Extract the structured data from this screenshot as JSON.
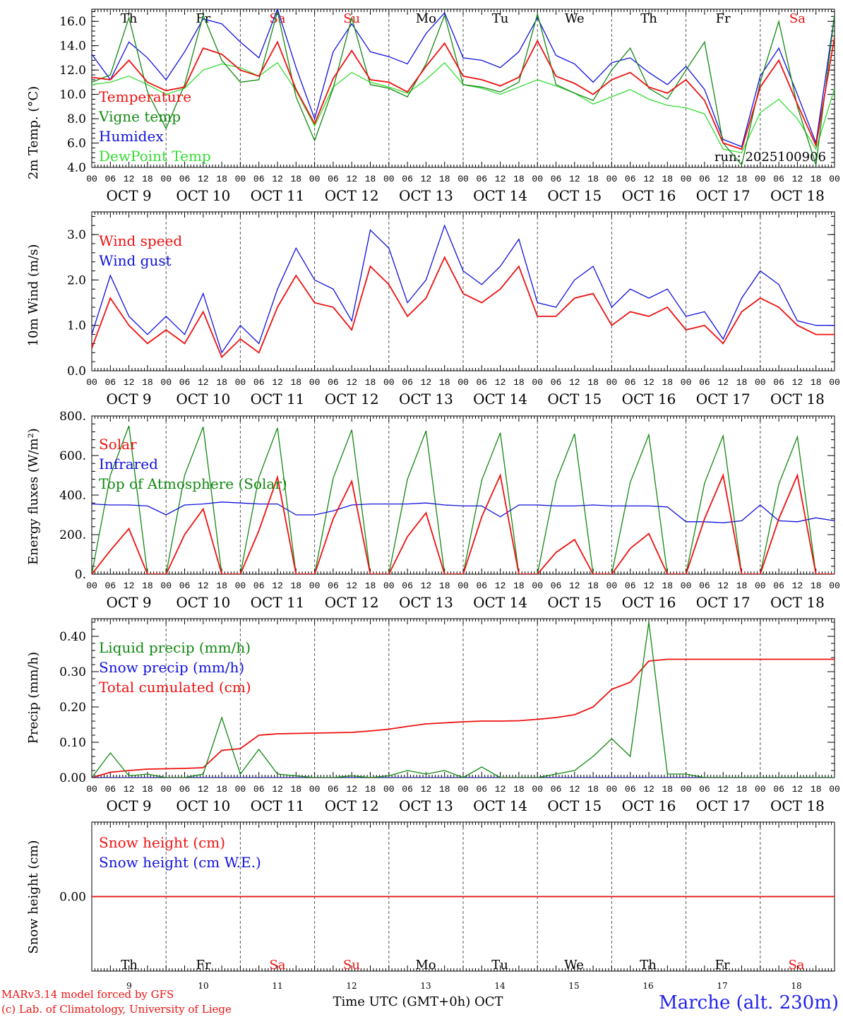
{
  "colors": {
    "red": "#ee1111",
    "green": "#118811",
    "blue": "#1111dd",
    "lightgreen": "#33dd33",
    "axis": "#000000"
  },
  "days": {
    "weekdays": [
      "Th",
      "Fr",
      "Sa",
      "Su",
      "Mo",
      "Tu",
      "We",
      "Th",
      "Fr",
      "Sa"
    ],
    "weekend": [
      false,
      false,
      true,
      true,
      false,
      false,
      false,
      false,
      false,
      true
    ],
    "dates": [
      "OCT  9",
      "OCT 10",
      "OCT 11",
      "OCT 12",
      "OCT 13",
      "OCT 14",
      "OCT 15",
      "OCT 16",
      "OCT 17",
      "OCT 18"
    ],
    "daynums": [
      "9",
      "10",
      "11",
      "12",
      "13",
      "14",
      "15",
      "16",
      "17",
      "18"
    ],
    "hour_ticks": [
      "00",
      "06",
      "12",
      "18"
    ],
    "end_tick": "00"
  },
  "run_label": "run: 2025100906",
  "footer": {
    "model": "MARv3.14 model forced by GFS",
    "copyright": "(c) Lab. of Climatology, University of Liege",
    "xlabel": "Time UTC (GMT+0h) OCT",
    "station": "Marche (alt. 230m)"
  },
  "chart_data": [
    {
      "type": "line",
      "ylabel": "2m Temp. (°C)",
      "ylim": [
        4,
        17
      ],
      "yticks": [
        "4.0",
        "6.0",
        "8.0",
        "10.0",
        "12.0",
        "14.0",
        "16.0"
      ],
      "ytick_values": [
        4,
        6,
        8,
        10,
        12,
        14,
        16
      ],
      "x_hours": [
        0,
        6,
        12,
        18,
        24,
        30,
        36,
        42,
        48,
        54,
        60,
        66,
        72,
        78,
        84,
        90,
        96,
        102,
        108,
        114,
        120,
        126,
        132,
        138,
        144,
        150,
        156,
        162,
        168,
        174,
        180,
        186,
        192,
        198,
        204,
        210,
        216,
        222,
        228,
        234,
        240
      ],
      "series": [
        {
          "name": "Temperature",
          "color": "red",
          "values": [
            11.4,
            11.2,
            12.8,
            11.0,
            10.3,
            10.6,
            13.8,
            13.3,
            12.0,
            11.5,
            14.3,
            10.4,
            7.6,
            11.3,
            13.6,
            11.2,
            11.0,
            10.2,
            12.3,
            14.2,
            11.5,
            11.2,
            10.7,
            11.4,
            14.4,
            11.5,
            10.9,
            10.0,
            11.2,
            11.8,
            10.6,
            10.1,
            11.2,
            9.5,
            6.0,
            5.5,
            10.6,
            12.8,
            9.2,
            5.8,
            14.7
          ]
        },
        {
          "name": "Vigne temp",
          "color": "green",
          "values": [
            11.0,
            11.6,
            16.3,
            10.2,
            7.2,
            10.8,
            16.5,
            12.8,
            11.0,
            11.2,
            16.8,
            9.8,
            6.2,
            10.5,
            16.3,
            10.8,
            10.5,
            9.8,
            12.5,
            16.5,
            10.8,
            10.6,
            10.2,
            11.0,
            16.6,
            10.8,
            10.1,
            9.5,
            12.0,
            13.8,
            10.5,
            9.6,
            12.0,
            14.3,
            6.0,
            4.2,
            11.0,
            16.0,
            9.0,
            4.2,
            16.5
          ]
        },
        {
          "name": "Humidex",
          "color": "blue",
          "values": [
            13.3,
            11.2,
            14.3,
            13.0,
            11.2,
            13.5,
            16.2,
            15.8,
            14.3,
            13.0,
            17.0,
            12.2,
            8.0,
            13.5,
            15.8,
            13.5,
            13.1,
            12.5,
            15.0,
            16.7,
            13.0,
            12.8,
            12.2,
            13.5,
            16.3,
            13.2,
            12.5,
            11.0,
            12.6,
            13.0,
            11.8,
            10.8,
            12.3,
            10.4,
            6.3,
            5.7,
            11.5,
            13.8,
            10.0,
            6.0,
            16.5
          ]
        },
        {
          "name": "DewPoint Temp",
          "color": "lightgreen",
          "values": [
            10.8,
            11.0,
            11.5,
            10.8,
            10.0,
            10.5,
            12.0,
            12.5,
            12.2,
            11.5,
            12.6,
            10.3,
            7.4,
            10.6,
            11.8,
            11.0,
            10.6,
            10.1,
            11.2,
            12.6,
            10.8,
            10.5,
            10.0,
            10.6,
            11.2,
            10.7,
            10.1,
            9.2,
            9.8,
            10.4,
            9.6,
            9.1,
            8.9,
            8.4,
            5.5,
            5.2,
            8.5,
            9.6,
            8.0,
            5.5,
            10.5
          ]
        }
      ]
    },
    {
      "type": "line",
      "ylabel": "10m Wind (m/s)",
      "ylim": [
        0,
        3.5
      ],
      "yticks": [
        "0.0",
        "1.0",
        "2.0",
        "3.0"
      ],
      "ytick_values": [
        0,
        1,
        2,
        3
      ],
      "x_hours": [
        0,
        6,
        12,
        18,
        24,
        30,
        36,
        42,
        48,
        54,
        60,
        66,
        72,
        78,
        84,
        90,
        96,
        102,
        108,
        114,
        120,
        126,
        132,
        138,
        144,
        150,
        156,
        162,
        168,
        174,
        180,
        186,
        192,
        198,
        204,
        210,
        216,
        222,
        228,
        234,
        240
      ],
      "series": [
        {
          "name": "Wind speed",
          "color": "red",
          "values": [
            0.5,
            1.6,
            1.0,
            0.6,
            0.9,
            0.6,
            1.3,
            0.3,
            0.7,
            0.4,
            1.4,
            2.1,
            1.5,
            1.4,
            0.9,
            2.3,
            1.9,
            1.2,
            1.6,
            2.5,
            1.7,
            1.5,
            1.8,
            2.3,
            1.2,
            1.2,
            1.6,
            1.7,
            1.0,
            1.3,
            1.2,
            1.4,
            0.9,
            1.0,
            0.6,
            1.3,
            1.6,
            1.4,
            1.0,
            0.8,
            0.8
          ]
        },
        {
          "name": "Wind gust",
          "color": "blue",
          "values": [
            0.8,
            2.1,
            1.2,
            0.8,
            1.2,
            0.8,
            1.7,
            0.4,
            1.0,
            0.6,
            1.8,
            2.7,
            2.0,
            1.8,
            1.1,
            3.1,
            2.7,
            1.5,
            2.0,
            3.2,
            2.2,
            1.9,
            2.3,
            2.9,
            1.5,
            1.4,
            2.0,
            2.3,
            1.4,
            1.8,
            1.6,
            1.8,
            1.2,
            1.3,
            0.7,
            1.6,
            2.2,
            1.9,
            1.1,
            1.0,
            1.0
          ]
        }
      ]
    },
    {
      "type": "line",
      "ylabel": "Energy fluxes (W/m²)",
      "ylim": [
        0,
        800
      ],
      "yticks": [
        "0.",
        "200.",
        "400.",
        "600.",
        "800."
      ],
      "ytick_values": [
        0,
        200,
        400,
        600,
        800
      ],
      "x_hours": [
        0,
        6,
        12,
        18,
        24,
        30,
        36,
        42,
        48,
        54,
        60,
        66,
        72,
        78,
        84,
        90,
        96,
        102,
        108,
        114,
        120,
        126,
        132,
        138,
        144,
        150,
        156,
        162,
        168,
        174,
        180,
        186,
        192,
        198,
        204,
        210,
        216,
        222,
        228,
        234,
        240
      ],
      "series": [
        {
          "name": "Solar",
          "color": "red",
          "values": [
            0,
            120,
            230,
            0,
            0,
            200,
            330,
            0,
            0,
            220,
            490,
            0,
            0,
            280,
            470,
            0,
            0,
            190,
            310,
            0,
            0,
            290,
            500,
            0,
            0,
            110,
            175,
            0,
            0,
            130,
            205,
            0,
            0,
            280,
            500,
            0,
            0,
            280,
            500,
            0,
            0
          ]
        },
        {
          "name": "Infrared",
          "color": "blue",
          "values": [
            355,
            350,
            350,
            345,
            300,
            350,
            355,
            365,
            360,
            355,
            355,
            300,
            300,
            320,
            350,
            355,
            355,
            355,
            360,
            350,
            345,
            345,
            290,
            350,
            350,
            345,
            345,
            350,
            345,
            345,
            345,
            340,
            265,
            265,
            260,
            270,
            350,
            270,
            265,
            285,
            270
          ]
        },
        {
          "name": "Top of Atmosphere (Solar)",
          "color": "green",
          "values": [
            0,
            500,
            750,
            0,
            0,
            500,
            745,
            0,
            0,
            490,
            740,
            0,
            0,
            485,
            730,
            0,
            0,
            480,
            725,
            0,
            0,
            475,
            715,
            0,
            0,
            470,
            710,
            0,
            0,
            465,
            705,
            0,
            0,
            460,
            700,
            0,
            0,
            455,
            695,
            0,
            0
          ]
        }
      ]
    },
    {
      "type": "line",
      "ylabel": "Precip (mm/h)",
      "ylim": [
        0,
        0.45
      ],
      "yticks": [
        "0.00",
        "0.10",
        "0.20",
        "0.30",
        "0.40"
      ],
      "ytick_values": [
        0,
        0.1,
        0.2,
        0.3,
        0.4
      ],
      "x_hours": [
        0,
        6,
        12,
        18,
        24,
        30,
        36,
        42,
        48,
        54,
        60,
        66,
        72,
        78,
        84,
        90,
        96,
        102,
        108,
        114,
        120,
        126,
        132,
        138,
        144,
        150,
        156,
        162,
        168,
        174,
        180,
        186,
        192,
        198,
        204,
        210,
        216,
        222,
        228,
        234,
        240
      ],
      "series": [
        {
          "name": "Liquid precip (mm/h)",
          "color": "green",
          "values": [
            0,
            0.07,
            0.005,
            0.01,
            0,
            0,
            0.01,
            0.17,
            0.01,
            0.08,
            0.01,
            0.005,
            0,
            0,
            0.005,
            0,
            0.005,
            0.02,
            0.01,
            0.02,
            0,
            0.03,
            0,
            0,
            0,
            0.01,
            0.02,
            0.06,
            0.11,
            0.06,
            0.44,
            0.01,
            0.01,
            0,
            0,
            0,
            0,
            0,
            0,
            0,
            0
          ]
        },
        {
          "name": "Snow precip (mm/h)",
          "color": "blue",
          "values": [
            0,
            0,
            0,
            0,
            0,
            0,
            0,
            0,
            0,
            0,
            0,
            0,
            0,
            0,
            0,
            0,
            0,
            0,
            0,
            0,
            0,
            0,
            0,
            0,
            0,
            0,
            0,
            0,
            0,
            0,
            0,
            0,
            0,
            0,
            0,
            0,
            0,
            0,
            0,
            0,
            0
          ]
        },
        {
          "name": "Total cumulated (cm)",
          "color": "red",
          "values": [
            0,
            0.015,
            0.02,
            0.024,
            0.025,
            0.026,
            0.028,
            0.077,
            0.082,
            0.12,
            0.124,
            0.125,
            0.126,
            0.127,
            0.128,
            0.132,
            0.137,
            0.145,
            0.152,
            0.155,
            0.158,
            0.16,
            0.16,
            0.161,
            0.165,
            0.17,
            0.178,
            0.2,
            0.25,
            0.27,
            0.33,
            0.335,
            0.335,
            0.335,
            0.335,
            0.335,
            0.335,
            0.335,
            0.335,
            0.335,
            0.335
          ]
        }
      ]
    },
    {
      "type": "line",
      "ylabel": "Snow height (cm)",
      "ylim": [
        -1,
        1
      ],
      "yticks": [
        "0.00"
      ],
      "ytick_values": [
        0
      ],
      "x_hours": [
        0,
        240
      ],
      "series": [
        {
          "name": "Snow height (cm)",
          "color": "red",
          "values": [
            0,
            0
          ]
        },
        {
          "name": "Snow height (cm W.E.)",
          "color": "blue",
          "values": [
            0,
            0
          ]
        }
      ]
    }
  ]
}
